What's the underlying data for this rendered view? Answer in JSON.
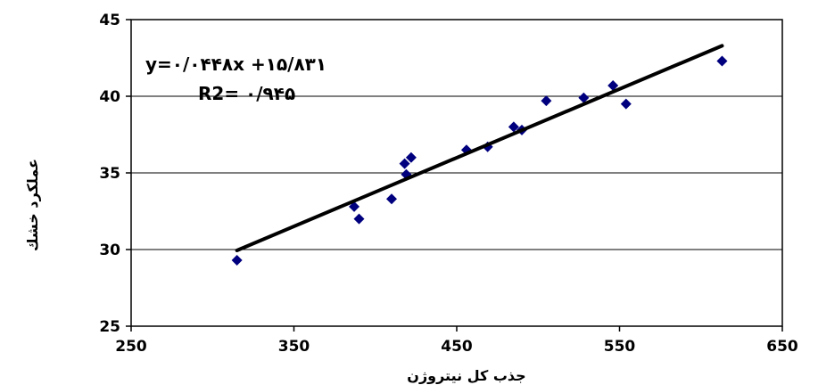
{
  "chart_data": {
    "type": "scatter",
    "title": "",
    "xlabel": "جذب كل نيتروژن",
    "ylabel": "عملكرد خشك",
    "xlim": [
      250,
      650
    ],
    "ylim": [
      25,
      45
    ],
    "x_ticks": [
      250,
      350,
      450,
      550,
      650
    ],
    "y_ticks": [
      25,
      30,
      35,
      40,
      45
    ],
    "x_tick_labels": [
      "250",
      "350",
      "450",
      "550",
      "650"
    ],
    "y_tick_labels": [
      "25",
      "30",
      "35",
      "40",
      "45"
    ],
    "grid": "horizontal",
    "legend": "none",
    "marker": "diamond",
    "marker_color": "#00007f",
    "series": [
      {
        "x": [
          315,
          387,
          390,
          410,
          418,
          419,
          422,
          456,
          469,
          485,
          490,
          505,
          528,
          546,
          554,
          613
        ],
        "y": [
          29.3,
          32.8,
          32.0,
          33.3,
          35.6,
          34.9,
          36.0,
          36.5,
          36.7,
          38.0,
          37.8,
          39.7,
          39.9,
          40.7,
          39.5,
          42.3
        ]
      }
    ],
    "trendline": {
      "type": "linear",
      "x_range": [
        315,
        613
      ],
      "slope": 0.0448,
      "intercept": 15.831,
      "color": "#000000"
    },
    "annotations": {
      "equation": "y=۰/۰۴۴۸x +۱۵/۸۳۱",
      "r_squared": "R2= ۰/۹۴۵"
    }
  }
}
